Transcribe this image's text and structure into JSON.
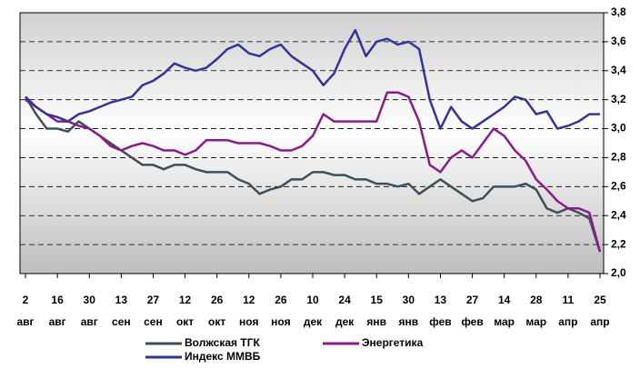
{
  "chart_data": {
    "type": "line",
    "categories": [
      "2 авг",
      null,
      null,
      "16 авг",
      null,
      null,
      "30 авг",
      null,
      null,
      "13 сен",
      null,
      null,
      "27 сен",
      null,
      null,
      "12 окт",
      null,
      null,
      "26 окт",
      null,
      null,
      "12 ноя",
      null,
      null,
      "26 ноя",
      null,
      null,
      "10 дек",
      null,
      null,
      "24 дек",
      null,
      null,
      "15 янв",
      null,
      null,
      "30 янв",
      null,
      null,
      "13 фев",
      null,
      null,
      "27 фев",
      null,
      null,
      "14 мар",
      null,
      null,
      "28 мар",
      null,
      null,
      "11 апр",
      null,
      null,
      "25 апр"
    ],
    "series": [
      {
        "name": "Волжская ТГК",
        "color": "#3d4f5a",
        "values": [
          3.22,
          3.1,
          3.0,
          3.0,
          2.98,
          3.05,
          3.0,
          2.95,
          2.9,
          2.85,
          2.8,
          2.75,
          2.75,
          2.72,
          2.75,
          2.75,
          2.72,
          2.7,
          2.7,
          2.7,
          2.65,
          2.62,
          2.55,
          2.58,
          2.6,
          2.65,
          2.65,
          2.7,
          2.7,
          2.68,
          2.68,
          2.65,
          2.65,
          2.62,
          2.62,
          2.6,
          2.62,
          2.55,
          2.6,
          2.65,
          2.6,
          2.55,
          2.5,
          2.52,
          2.6,
          2.6,
          2.6,
          2.62,
          2.58,
          2.45,
          2.42,
          2.45,
          2.42,
          2.38,
          2.15
        ]
      },
      {
        "name": "Энергетика",
        "color": "#8b1a8b",
        "values": [
          3.2,
          3.15,
          3.1,
          3.05,
          3.05,
          3.02,
          3.0,
          2.95,
          2.88,
          2.85,
          2.88,
          2.9,
          2.88,
          2.85,
          2.85,
          2.82,
          2.85,
          2.92,
          2.92,
          2.92,
          2.9,
          2.9,
          2.9,
          2.88,
          2.85,
          2.85,
          2.88,
          2.95,
          3.1,
          3.05,
          3.05,
          3.05,
          3.05,
          3.05,
          3.25,
          3.25,
          3.22,
          3.05,
          2.75,
          2.7,
          2.8,
          2.85,
          2.8,
          2.9,
          3.0,
          2.95,
          2.85,
          2.78,
          2.65,
          2.58,
          2.5,
          2.45,
          2.45,
          2.42,
          2.15
        ]
      },
      {
        "name": "Индекс ММВБ",
        "color": "#33339a",
        "values": [
          3.22,
          3.15,
          3.1,
          3.08,
          3.05,
          3.1,
          3.12,
          3.15,
          3.18,
          3.2,
          3.22,
          3.3,
          3.33,
          3.38,
          3.45,
          3.42,
          3.4,
          3.42,
          3.48,
          3.55,
          3.58,
          3.52,
          3.5,
          3.55,
          3.58,
          3.5,
          3.45,
          3.4,
          3.3,
          3.38,
          3.55,
          3.68,
          3.5,
          3.6,
          3.62,
          3.58,
          3.6,
          3.55,
          3.2,
          3.0,
          3.15,
          3.05,
          3.0,
          3.05,
          3.1,
          3.15,
          3.22,
          3.2,
          3.1,
          3.12,
          3.0,
          3.02,
          3.05,
          3.1,
          3.1
        ]
      }
    ],
    "ylim": [
      2.0,
      3.8
    ],
    "yticks": [
      {
        "value": 2.0,
        "label": "2,0"
      },
      {
        "value": 2.2,
        "label": "2,2"
      },
      {
        "value": 2.4,
        "label": "2,4"
      },
      {
        "value": 2.6,
        "label": "2,6"
      },
      {
        "value": 2.8,
        "label": "2,8"
      },
      {
        "value": 3.0,
        "label": "3,0"
      },
      {
        "value": 3.2,
        "label": "3,2"
      },
      {
        "value": 3.4,
        "label": "3,4"
      },
      {
        "value": 3.6,
        "label": "3,6"
      },
      {
        "value": 3.8,
        "label": "3,8"
      }
    ],
    "grid": true
  }
}
